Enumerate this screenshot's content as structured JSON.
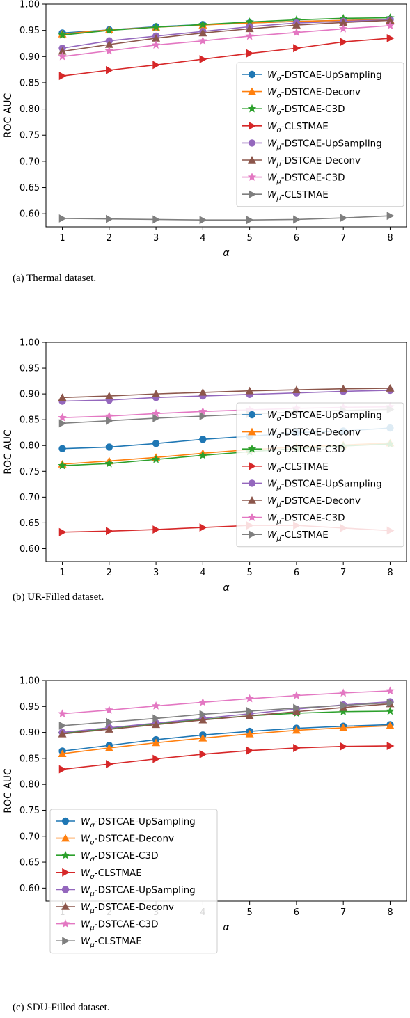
{
  "series_styles": [
    {
      "color": "#1f77b4",
      "marker": "circle"
    },
    {
      "color": "#ff7f0e",
      "marker": "triangle-up"
    },
    {
      "color": "#2ca02c",
      "marker": "star"
    },
    {
      "color": "#d62728",
      "marker": "triangle-right"
    },
    {
      "color": "#9467bd",
      "marker": "circle"
    },
    {
      "color": "#8c564b",
      "marker": "triangle-up"
    },
    {
      "color": "#e377c2",
      "marker": "star"
    },
    {
      "color": "#7f7f7f",
      "marker": "triangle-right"
    }
  ],
  "chart_data": [
    {
      "type": "line",
      "caption": "(a) Thermal dataset.",
      "xlabel": "α",
      "ylabel": "ROC AUC",
      "x": [
        1,
        2,
        3,
        4,
        5,
        6,
        7,
        8
      ],
      "xticks": [
        "1",
        "2",
        "3",
        "4",
        "5",
        "6",
        "7",
        "8"
      ],
      "yticks": [
        "0.60",
        "0.65",
        "0.70",
        "0.75",
        "0.80",
        "0.85",
        "0.90",
        "0.95",
        "1.00"
      ],
      "ylim": [
        0.575,
        1.0
      ],
      "xlim": [
        0.65,
        8.35
      ],
      "grid": false,
      "legend_position": "center-right",
      "series": [
        {
          "name": "W_σ-DSTCAE-UpSampling",
          "values": [
            0.945,
            0.951,
            0.957,
            0.961,
            0.964,
            0.967,
            0.969,
            0.971
          ]
        },
        {
          "name": "W_σ-DSTCAE-Deconv",
          "values": [
            0.943,
            0.951,
            0.956,
            0.96,
            0.964,
            0.967,
            0.969,
            0.97
          ]
        },
        {
          "name": "W_σ-DSTCAE-C3D",
          "values": [
            0.941,
            0.95,
            0.956,
            0.961,
            0.966,
            0.97,
            0.973,
            0.974
          ]
        },
        {
          "name": "W_σ-CLSTMAE",
          "values": [
            0.863,
            0.874,
            0.884,
            0.895,
            0.906,
            0.916,
            0.928,
            0.935
          ]
        },
        {
          "name": "W_μ-DSTCAE-UpSampling",
          "values": [
            0.916,
            0.93,
            0.939,
            0.948,
            0.957,
            0.964,
            0.967,
            0.97
          ]
        },
        {
          "name": "W_μ-DSTCAE-Deconv",
          "values": [
            0.91,
            0.923,
            0.935,
            0.945,
            0.953,
            0.96,
            0.965,
            0.969
          ]
        },
        {
          "name": "W_μ-DSTCAE-C3D",
          "values": [
            0.9,
            0.911,
            0.922,
            0.93,
            0.939,
            0.946,
            0.953,
            0.959
          ]
        },
        {
          "name": "W_μ-CLSTMAE",
          "values": [
            0.591,
            0.59,
            0.589,
            0.588,
            0.588,
            0.589,
            0.592,
            0.596
          ]
        }
      ]
    },
    {
      "type": "line",
      "caption": "(b) UR-Filled dataset.",
      "xlabel": "α",
      "ylabel": "ROC AUC",
      "x": [
        1,
        2,
        3,
        4,
        5,
        6,
        7,
        8
      ],
      "xticks": [
        "1",
        "2",
        "3",
        "4",
        "5",
        "6",
        "7",
        "8"
      ],
      "yticks": [
        "0.60",
        "0.65",
        "0.70",
        "0.75",
        "0.80",
        "0.85",
        "0.90",
        "0.95",
        "1.00"
      ],
      "ylim": [
        0.575,
        1.0
      ],
      "xlim": [
        0.65,
        8.35
      ],
      "grid": false,
      "legend_position": "center-right",
      "series": [
        {
          "name": "W_σ-DSTCAE-UpSampling",
          "values": [
            0.794,
            0.797,
            0.804,
            0.812,
            0.818,
            0.825,
            0.828,
            0.834
          ]
        },
        {
          "name": "W_σ-DSTCAE-Deconv",
          "values": [
            0.764,
            0.77,
            0.777,
            0.785,
            0.792,
            0.797,
            0.801,
            0.805
          ]
        },
        {
          "name": "W_σ-DSTCAE-C3D",
          "values": [
            0.761,
            0.765,
            0.773,
            0.781,
            0.788,
            0.794,
            0.799,
            0.803
          ]
        },
        {
          "name": "W_σ-CLSTMAE",
          "values": [
            0.632,
            0.634,
            0.637,
            0.641,
            0.645,
            0.645,
            0.64,
            0.635
          ]
        },
        {
          "name": "W_μ-DSTCAE-UpSampling",
          "values": [
            0.886,
            0.888,
            0.893,
            0.896,
            0.899,
            0.902,
            0.905,
            0.907
          ]
        },
        {
          "name": "W_μ-DSTCAE-Deconv",
          "values": [
            0.893,
            0.896,
            0.9,
            0.903,
            0.906,
            0.908,
            0.91,
            0.911
          ]
        },
        {
          "name": "W_μ-DSTCAE-C3D",
          "values": [
            0.854,
            0.857,
            0.862,
            0.866,
            0.869,
            0.872,
            0.874,
            0.875
          ]
        },
        {
          "name": "W_μ-CLSTMAE",
          "values": [
            0.843,
            0.848,
            0.853,
            0.857,
            0.861,
            0.865,
            0.868,
            0.87
          ]
        }
      ]
    },
    {
      "type": "line",
      "caption": "(c) SDU-Filled dataset.",
      "xlabel": "α",
      "ylabel": "ROC AUC",
      "x": [
        1,
        2,
        3,
        4,
        5,
        6,
        7,
        8
      ],
      "xticks": [
        "1",
        "2",
        "3",
        "4",
        "5",
        "6",
        "7",
        "8"
      ],
      "yticks": [
        "0.60",
        "0.65",
        "0.70",
        "0.75",
        "0.80",
        "0.85",
        "0.90",
        "0.95",
        "1.00"
      ],
      "ylim": [
        0.575,
        1.0
      ],
      "xlim": [
        0.65,
        8.35
      ],
      "grid": false,
      "legend_position": "lower-left",
      "series": [
        {
          "name": "W_σ-DSTCAE-UpSampling",
          "values": [
            0.864,
            0.875,
            0.886,
            0.895,
            0.902,
            0.908,
            0.912,
            0.915
          ]
        },
        {
          "name": "W_σ-DSTCAE-Deconv",
          "values": [
            0.859,
            0.87,
            0.88,
            0.889,
            0.897,
            0.904,
            0.909,
            0.913
          ]
        },
        {
          "name": "W_σ-DSTCAE-C3D",
          "values": [
            0.898,
            0.908,
            0.917,
            0.925,
            0.932,
            0.937,
            0.94,
            0.941
          ]
        },
        {
          "name": "W_σ-CLSTMAE",
          "values": [
            0.829,
            0.839,
            0.849,
            0.858,
            0.865,
            0.87,
            0.873,
            0.874
          ]
        },
        {
          "name": "W_μ-DSTCAE-UpSampling",
          "values": [
            0.9,
            0.909,
            0.918,
            0.927,
            0.936,
            0.945,
            0.953,
            0.959
          ]
        },
        {
          "name": "W_μ-DSTCAE-Deconv",
          "values": [
            0.897,
            0.906,
            0.915,
            0.924,
            0.932,
            0.94,
            0.948,
            0.955
          ]
        },
        {
          "name": "W_μ-DSTCAE-C3D",
          "values": [
            0.936,
            0.943,
            0.951,
            0.958,
            0.965,
            0.971,
            0.976,
            0.98
          ]
        },
        {
          "name": "W_μ-CLSTMAE",
          "values": [
            0.913,
            0.92,
            0.927,
            0.935,
            0.941,
            0.947,
            0.952,
            0.957
          ]
        }
      ]
    }
  ]
}
